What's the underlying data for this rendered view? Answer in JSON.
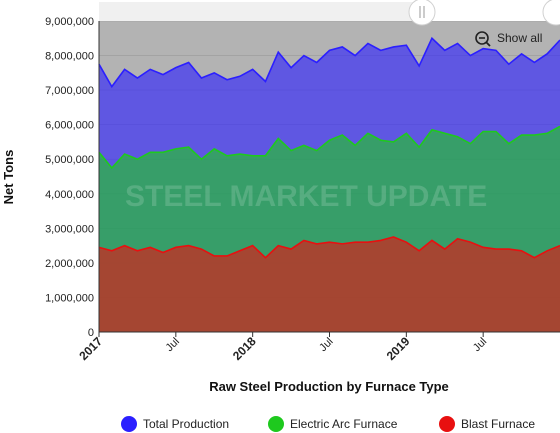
{
  "chart_data": {
    "type": "area",
    "title": "",
    "xlabel": "Raw Steel Production by Furnace Type",
    "ylabel": "Net Tons",
    "ylim": [
      0,
      9000000
    ],
    "yticks": [
      0,
      1000000,
      2000000,
      3000000,
      4000000,
      5000000,
      6000000,
      7000000,
      8000000,
      9000000
    ],
    "ytick_labels": [
      "0",
      "1,000,000",
      "2,000,000",
      "3,000,000",
      "4,000,000",
      "5,000,000",
      "6,000,000",
      "7,000,000",
      "8,000,000",
      "9,000,000"
    ],
    "x_start": "2017-01",
    "x_end": "2020-01",
    "xticks": [
      {
        "date": "2017-01",
        "label": "2017",
        "major": true
      },
      {
        "date": "2017-07",
        "label": "Jul",
        "major": false
      },
      {
        "date": "2018-01",
        "label": "2018",
        "major": true
      },
      {
        "date": "2018-07",
        "label": "Jul",
        "major": false
      },
      {
        "date": "2019-01",
        "label": "2019",
        "major": true
      },
      {
        "date": "2019-07",
        "label": "Jul",
        "major": false
      }
    ],
    "x": [
      "2017-01",
      "2017-02",
      "2017-03",
      "2017-04",
      "2017-05",
      "2017-06",
      "2017-07",
      "2017-08",
      "2017-09",
      "2017-10",
      "2017-11",
      "2017-12",
      "2018-01",
      "2018-02",
      "2018-03",
      "2018-04",
      "2018-05",
      "2018-06",
      "2018-07",
      "2018-08",
      "2018-09",
      "2018-10",
      "2018-11",
      "2018-12",
      "2019-01",
      "2019-02",
      "2019-03",
      "2019-04",
      "2019-05",
      "2019-06",
      "2019-07",
      "2019-08",
      "2019-09",
      "2019-10",
      "2019-11",
      "2019-12",
      "2020-01"
    ],
    "series": [
      {
        "name": "Total Production",
        "color": "#2b1fff",
        "values": [
          7750000,
          7100000,
          7600000,
          7350000,
          7600000,
          7450000,
          7650000,
          7800000,
          7350000,
          7500000,
          7300000,
          7400000,
          7600000,
          7250000,
          8100000,
          7650000,
          8000000,
          7800000,
          8150000,
          8250000,
          8000000,
          8350000,
          8150000,
          8250000,
          8300000,
          7700000,
          8500000,
          8150000,
          8350000,
          8000000,
          8200000,
          8150000,
          7750000,
          8050000,
          7800000,
          8050000,
          8450000
        ]
      },
      {
        "name": "Electric Arc Furnace",
        "color": "#1ec91e",
        "values": [
          5200000,
          4750000,
          5150000,
          5000000,
          5200000,
          5200000,
          5300000,
          5350000,
          5000000,
          5300000,
          5100000,
          5150000,
          5100000,
          5100000,
          5600000,
          5250000,
          5400000,
          5250000,
          5550000,
          5700000,
          5400000,
          5750000,
          5550000,
          5500000,
          5750000,
          5350000,
          5850000,
          5750000,
          5650000,
          5450000,
          5800000,
          5800000,
          5450000,
          5700000,
          5700000,
          5750000,
          5950000
        ]
      },
      {
        "name": "Blast Furnace",
        "color": "#e81010",
        "values": [
          2450000,
          2350000,
          2500000,
          2350000,
          2450000,
          2300000,
          2450000,
          2500000,
          2400000,
          2200000,
          2200000,
          2350000,
          2500000,
          2150000,
          2500000,
          2400000,
          2650000,
          2550000,
          2600000,
          2550000,
          2600000,
          2600000,
          2650000,
          2750000,
          2600000,
          2350000,
          2650000,
          2400000,
          2700000,
          2600000,
          2450000,
          2400000,
          2400000,
          2350000,
          2150000,
          2350000,
          2500000
        ]
      }
    ],
    "legend_position": "bottom",
    "grid": true
  },
  "watermark": "STEEL MARKET UPDATE",
  "controls": {
    "show_all_label": "Show all"
  },
  "colors": {
    "plot_band": "#b3b3b3",
    "grid": "#9a9a9a"
  }
}
